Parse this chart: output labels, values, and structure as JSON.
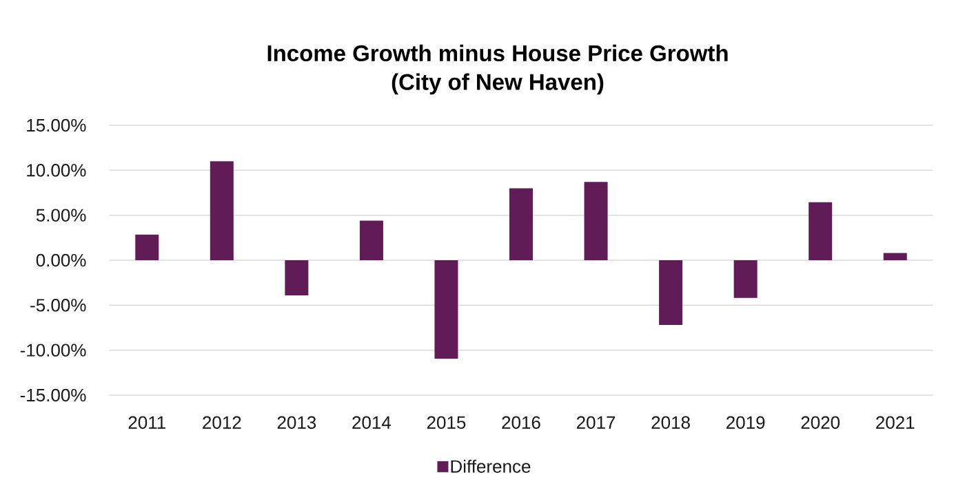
{
  "chart_data": {
    "type": "bar",
    "title": "Income Growth minus House Price Growth",
    "subtitle": "(City of New Haven)",
    "categories": [
      "2011",
      "2012",
      "2013",
      "2014",
      "2015",
      "2016",
      "2017",
      "2018",
      "2019",
      "2020",
      "2021"
    ],
    "series": [
      {
        "name": "Difference",
        "color": "#611c57",
        "values": [
          2.85,
          11.0,
          -3.9,
          4.4,
          -10.95,
          8.0,
          8.7,
          -7.2,
          -4.2,
          6.45,
          0.8
        ]
      }
    ],
    "ylim": [
      -15,
      15
    ],
    "yticks": [
      {
        "value": -15,
        "label": "-15.00%"
      },
      {
        "value": -10,
        "label": "-10.00%"
      },
      {
        "value": -5,
        "label": "-5.00%"
      },
      {
        "value": 0,
        "label": "0.00%"
      },
      {
        "value": 5,
        "label": "5.00%"
      },
      {
        "value": 10,
        "label": "10.00%"
      },
      {
        "value": 15,
        "label": "15.00%"
      }
    ],
    "grid": "y",
    "legend": "bottom"
  }
}
